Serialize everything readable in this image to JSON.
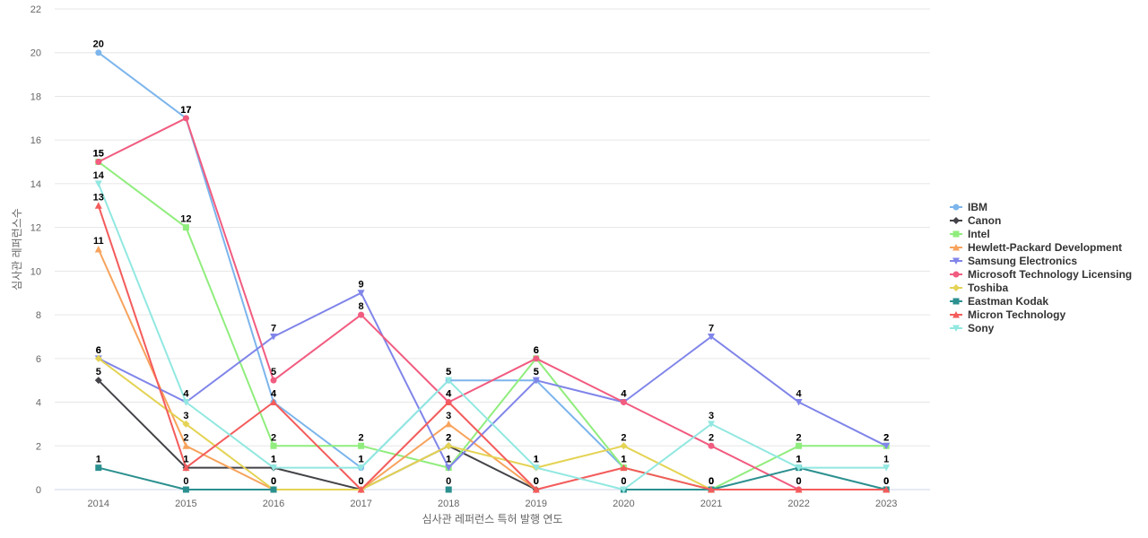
{
  "chart_data": {
    "type": "line",
    "title": "",
    "xlabel": "심사관 레퍼런스 특허 발행 연도",
    "ylabel": "심사관 레퍼런스수",
    "categories": [
      "2014",
      "2015",
      "2016",
      "2017",
      "2018",
      "2019",
      "2020",
      "2021",
      "2022",
      "2023"
    ],
    "ylim": [
      0,
      22
    ],
    "yticks": [
      0,
      2,
      4,
      6,
      8,
      10,
      12,
      14,
      16,
      18,
      20,
      22
    ],
    "grid": true,
    "legend_position": "right",
    "series": [
      {
        "name": "IBM",
        "color": "#7cb5ec",
        "marker": "circle",
        "values": [
          20,
          17,
          4,
          1,
          5,
          5,
          1,
          null,
          1,
          null
        ]
      },
      {
        "name": "Canon",
        "color": "#434348",
        "marker": "diamond",
        "values": [
          5,
          1,
          1,
          0,
          2,
          0,
          null,
          null,
          null,
          null
        ]
      },
      {
        "name": "Intel",
        "color": "#90ed7d",
        "marker": "square",
        "values": [
          15,
          12,
          2,
          2,
          1,
          6,
          1,
          0,
          2,
          2
        ]
      },
      {
        "name": "Hewlett-Packard Development",
        "color": "#f7a35c",
        "marker": "triangle",
        "values": [
          11,
          2,
          0,
          0,
          3,
          0,
          null,
          null,
          null,
          null
        ]
      },
      {
        "name": "Samsung Electronics",
        "color": "#8085e9",
        "marker": "triangle-down",
        "values": [
          6,
          4,
          7,
          9,
          1,
          5,
          4,
          7,
          4,
          2
        ]
      },
      {
        "name": "Microsoft Technology Licensing",
        "color": "#f15c80",
        "marker": "circle",
        "values": [
          15,
          17,
          5,
          8,
          4,
          6,
          4,
          2,
          0,
          0
        ]
      },
      {
        "name": "Toshiba",
        "color": "#e4d354",
        "marker": "diamond",
        "values": [
          6,
          3,
          0,
          0,
          2,
          1,
          2,
          0,
          null,
          null
        ]
      },
      {
        "name": "Eastman Kodak",
        "color": "#2b908f",
        "marker": "square",
        "values": [
          1,
          0,
          0,
          null,
          0,
          null,
          0,
          0,
          1,
          0
        ]
      },
      {
        "name": "Micron Technology",
        "color": "#f45b5b",
        "marker": "triangle",
        "values": [
          13,
          1,
          4,
          0,
          4,
          0,
          1,
          0,
          0,
          0
        ]
      },
      {
        "name": "Sony",
        "color": "#91e8e1",
        "marker": "triangle-down",
        "values": [
          14,
          4,
          1,
          1,
          5,
          1,
          0,
          3,
          1,
          1
        ]
      }
    ]
  }
}
